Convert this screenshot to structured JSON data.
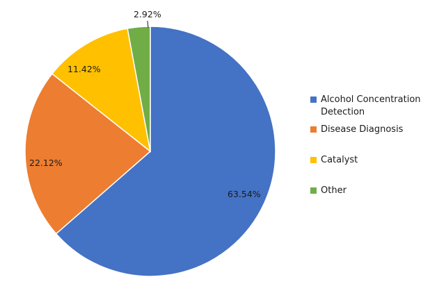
{
  "chart_data": {
    "type": "pie",
    "title": "",
    "categories": [
      "Alcohol Concentration Detection",
      "Disease Diagnosis",
      "Catalyst",
      "Other"
    ],
    "values": [
      63.54,
      22.12,
      11.42,
      2.92
    ],
    "labels": [
      "63.54%",
      "22.12%",
      "11.42%",
      "2.92%"
    ],
    "colors": [
      "#4472C4",
      "#ED7D31",
      "#FFC000",
      "#70AD47"
    ],
    "start_angle": "12 o'clock, clockwise",
    "legend_position": "right"
  },
  "legend": {
    "items": [
      {
        "label_line1": "Alcohol Concentration",
        "label_line2": "Detection",
        "color": "#4472C4"
      },
      {
        "label_line1": "Disease Diagnosis",
        "label_line2": "",
        "color": "#ED7D31"
      },
      {
        "label_line1": "Catalyst",
        "label_line2": "",
        "color": "#FFC000"
      },
      {
        "label_line1": "Other",
        "label_line2": "",
        "color": "#70AD47"
      }
    ]
  }
}
